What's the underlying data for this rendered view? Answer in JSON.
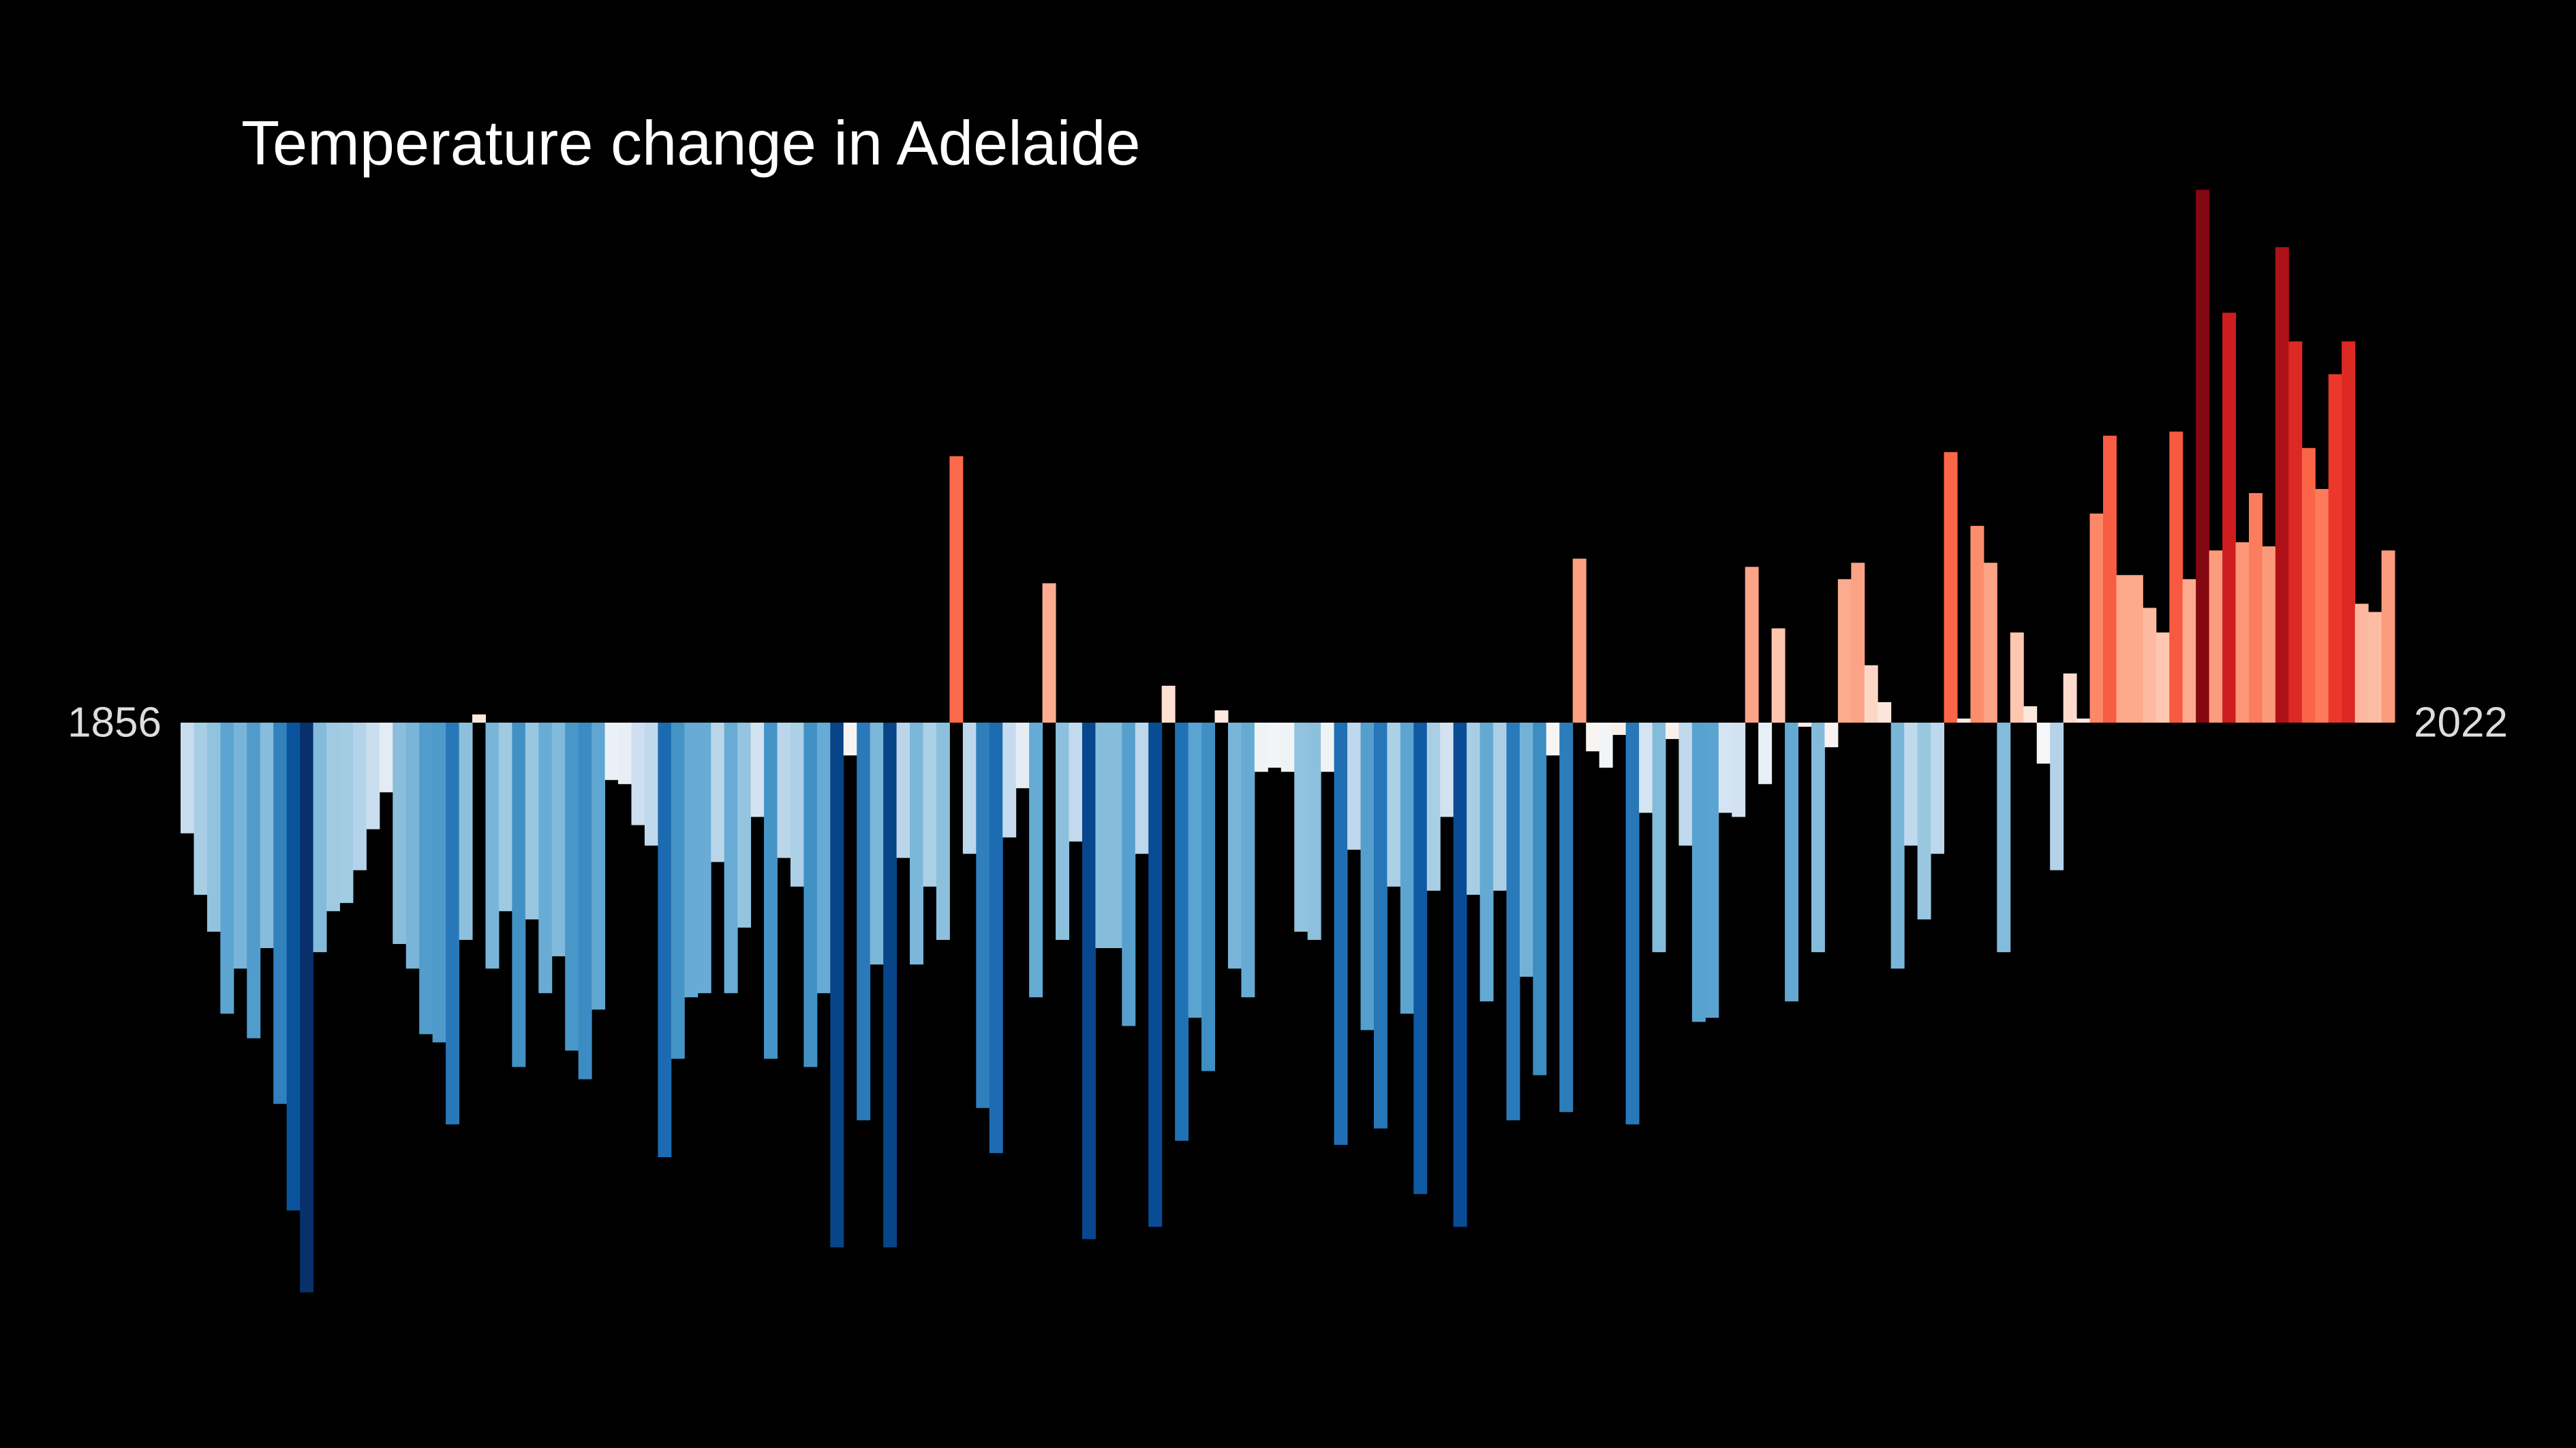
{
  "chart_data": {
    "type": "bar",
    "title": "Temperature change in Adelaide",
    "xlim": [
      1856,
      2022
    ],
    "xticks": [
      1856,
      2022
    ],
    "ylim": [
      -1.6,
      1.6
    ],
    "values": [
      -0.27,
      -0.42,
      -0.51,
      -0.71,
      -0.6,
      -0.77,
      -0.55,
      -0.93,
      -1.19,
      -1.39,
      -0.56,
      -0.46,
      -0.44,
      -0.36,
      -0.26,
      -0.17,
      -0.54,
      -0.6,
      -0.76,
      -0.78,
      -0.98,
      -0.53,
      0.02,
      -0.6,
      -0.46,
      -0.84,
      -0.48,
      -0.66,
      -0.57,
      -0.8,
      -0.87,
      -0.7,
      -0.14,
      -0.15,
      -0.25,
      -0.3,
      -1.06,
      -0.82,
      -0.67,
      -0.66,
      -0.34,
      -0.66,
      -0.5,
      -0.23,
      -0.82,
      -0.33,
      -0.4,
      -0.84,
      -0.66,
      -1.28,
      -0.08,
      -0.97,
      -0.59,
      -1.28,
      -0.33,
      -0.59,
      -0.4,
      -0.53,
      0.65,
      -0.32,
      -0.94,
      -1.05,
      -0.28,
      -0.16,
      -0.67,
      0.34,
      -0.53,
      -0.29,
      -1.26,
      -0.55,
      -0.55,
      -0.74,
      -0.32,
      -1.23,
      0.09,
      -1.02,
      -0.72,
      -0.85,
      0.03,
      -0.6,
      -0.67,
      -0.12,
      -0.11,
      -0.12,
      -0.51,
      -0.53,
      -0.12,
      -1.03,
      -0.31,
      -0.75,
      -0.99,
      -0.4,
      -0.71,
      -1.15,
      -0.41,
      -0.23,
      -1.23,
      -0.42,
      -0.68,
      -0.41,
      -0.97,
      -0.62,
      -0.86,
      -0.08,
      -0.95,
      0.4,
      -0.07,
      -0.11,
      -0.03,
      -0.98,
      -0.22,
      -0.56,
      -0.04,
      -0.3,
      -0.73,
      -0.72,
      -0.22,
      -0.23,
      0.38,
      -0.15,
      0.23,
      -0.68,
      -0.01,
      -0.56,
      -0.06,
      0.35,
      0.39,
      0.14,
      0.05,
      -0.6,
      -0.3,
      -0.48,
      -0.32,
      0.66,
      0.01,
      0.48,
      0.39,
      -0.56,
      0.22,
      0.04,
      -0.1,
      -0.36,
      0.12,
      0.01,
      0.51,
      0.7,
      0.36,
      0.36,
      0.28,
      0.22,
      0.71,
      0.35,
      1.3,
      0.42,
      1.0,
      0.44,
      0.56,
      0.43,
      1.16,
      0.93,
      0.67,
      0.57,
      0.85,
      0.93,
      0.29,
      0.27,
      0.42
    ]
  }
}
